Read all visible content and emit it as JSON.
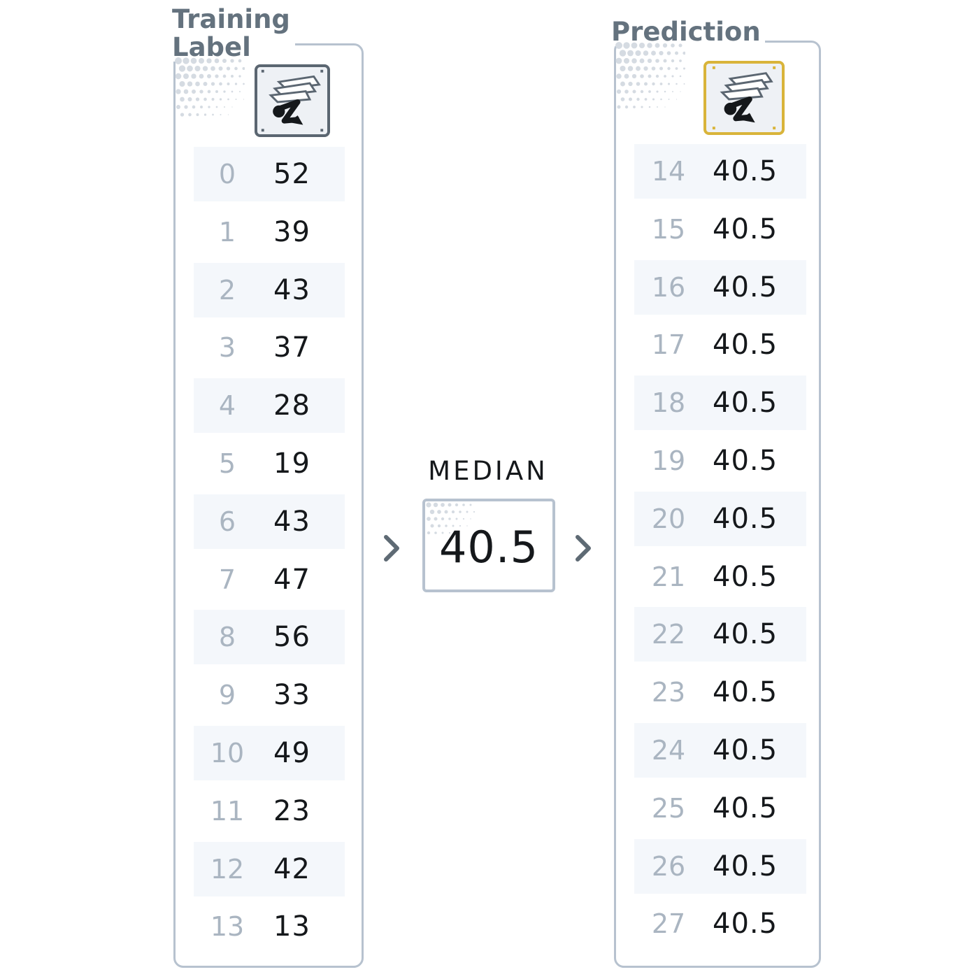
{
  "training_panel": {
    "title": "Training\nLabel",
    "icon": "sheet-music-icon",
    "rows": [
      {
        "index": "0",
        "value": "52"
      },
      {
        "index": "1",
        "value": "39"
      },
      {
        "index": "2",
        "value": "43"
      },
      {
        "index": "3",
        "value": "37"
      },
      {
        "index": "4",
        "value": "28"
      },
      {
        "index": "5",
        "value": "19"
      },
      {
        "index": "6",
        "value": "43"
      },
      {
        "index": "7",
        "value": "47"
      },
      {
        "index": "8",
        "value": "56"
      },
      {
        "index": "9",
        "value": "33"
      },
      {
        "index": "10",
        "value": "49"
      },
      {
        "index": "11",
        "value": "23"
      },
      {
        "index": "12",
        "value": "42"
      },
      {
        "index": "13",
        "value": "13"
      }
    ]
  },
  "median": {
    "label": "MEDIAN",
    "value": "40.5"
  },
  "prediction_panel": {
    "title": "Prediction",
    "icon": "sheet-music-icon",
    "rows": [
      {
        "index": "14",
        "value": "40.5"
      },
      {
        "index": "15",
        "value": "40.5"
      },
      {
        "index": "16",
        "value": "40.5"
      },
      {
        "index": "17",
        "value": "40.5"
      },
      {
        "index": "18",
        "value": "40.5"
      },
      {
        "index": "19",
        "value": "40.5"
      },
      {
        "index": "20",
        "value": "40.5"
      },
      {
        "index": "21",
        "value": "40.5"
      },
      {
        "index": "22",
        "value": "40.5"
      },
      {
        "index": "23",
        "value": "40.5"
      },
      {
        "index": "24",
        "value": "40.5"
      },
      {
        "index": "25",
        "value": "40.5"
      },
      {
        "index": "26",
        "value": "40.5"
      },
      {
        "index": "27",
        "value": "40.5"
      }
    ]
  },
  "colors": {
    "panel_border": "#b7c2cf",
    "title_text": "#64727e",
    "index_text": "#aab5c1",
    "value_text": "#15181b",
    "row_shade": "#f4f7fb",
    "training_icon_border": "#5b6671",
    "prediction_icon_border": "#d9b43a"
  }
}
